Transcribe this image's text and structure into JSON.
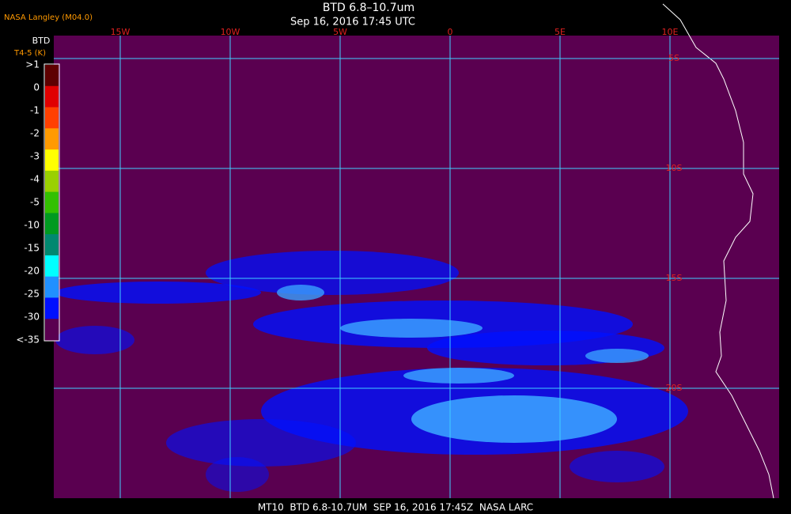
{
  "header": {
    "source": "NASA Langley (M04.0)",
    "title": "BTD 6.8–10.7um",
    "time": "Sep 16, 2016 17:45 UTC"
  },
  "legend": {
    "title": "BTD",
    "units": "T4-5 (K)",
    "labels": [
      ">1",
      "0",
      "-1",
      "-2",
      "-3",
      "-4",
      "-5",
      "-10",
      "-15",
      "-20",
      "-25",
      "-30",
      "<-35"
    ],
    "colors": [
      "#5e0000",
      "#e00000",
      "#ff4000",
      "#ff9a00",
      "#ffff00",
      "#9ad000",
      "#33c000",
      "#009a20",
      "#008870",
      "#00ffff",
      "#2090ff",
      "#0010ff",
      "#5a0050"
    ]
  },
  "map": {
    "longitudes": [
      "15W",
      "10W",
      "5W",
      "0",
      "5E",
      "10E"
    ],
    "latitudes": [
      "5S",
      "10S",
      "15S",
      "20S"
    ]
  },
  "footer": "MT10  BTD 6.8-10.7UM  SEP 16, 2016 17:45Z  NASA LARC"
}
